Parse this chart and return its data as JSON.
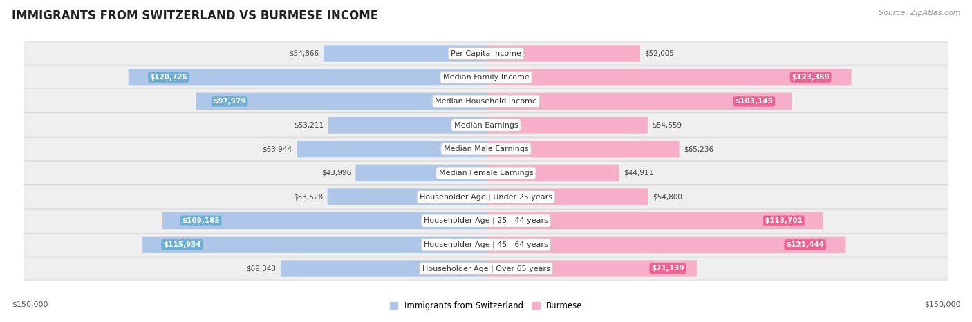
{
  "title": "IMMIGRANTS FROM SWITZERLAND VS BURMESE INCOME",
  "source": "Source: ZipAtlas.com",
  "categories": [
    "Per Capita Income",
    "Median Family Income",
    "Median Household Income",
    "Median Earnings",
    "Median Male Earnings",
    "Median Female Earnings",
    "Householder Age | Under 25 years",
    "Householder Age | 25 - 44 years",
    "Householder Age | 45 - 64 years",
    "Householder Age | Over 65 years"
  ],
  "swiss_values": [
    54866,
    120726,
    97979,
    53211,
    63944,
    43996,
    53528,
    109185,
    115934,
    69343
  ],
  "burmese_values": [
    52005,
    123369,
    103145,
    54559,
    65236,
    44911,
    54800,
    113701,
    121444,
    71139
  ],
  "swiss_labels": [
    "$54,866",
    "$120,726",
    "$97,979",
    "$53,211",
    "$63,944",
    "$43,996",
    "$53,528",
    "$109,185",
    "$115,934",
    "$69,343"
  ],
  "burmese_labels": [
    "$52,005",
    "$123,369",
    "$103,145",
    "$54,559",
    "$65,236",
    "$44,911",
    "$54,800",
    "$113,701",
    "$121,444",
    "$71,139"
  ],
  "swiss_color_light": "#aec6e8",
  "swiss_color_dark": "#6baed6",
  "burmese_color_light": "#f7aec8",
  "burmese_color_dark": "#f06090",
  "max_val": 150000,
  "background_color": "#ffffff",
  "row_bg": "#efefef",
  "row_border": "#dddddd",
  "legend_swiss": "Immigrants from Switzerland",
  "legend_burmese": "Burmese",
  "x_label_left": "$150,000",
  "x_label_right": "$150,000",
  "inside_label_threshold": 70000,
  "cat_label_fontsize": 8,
  "val_label_fontsize": 7.5
}
